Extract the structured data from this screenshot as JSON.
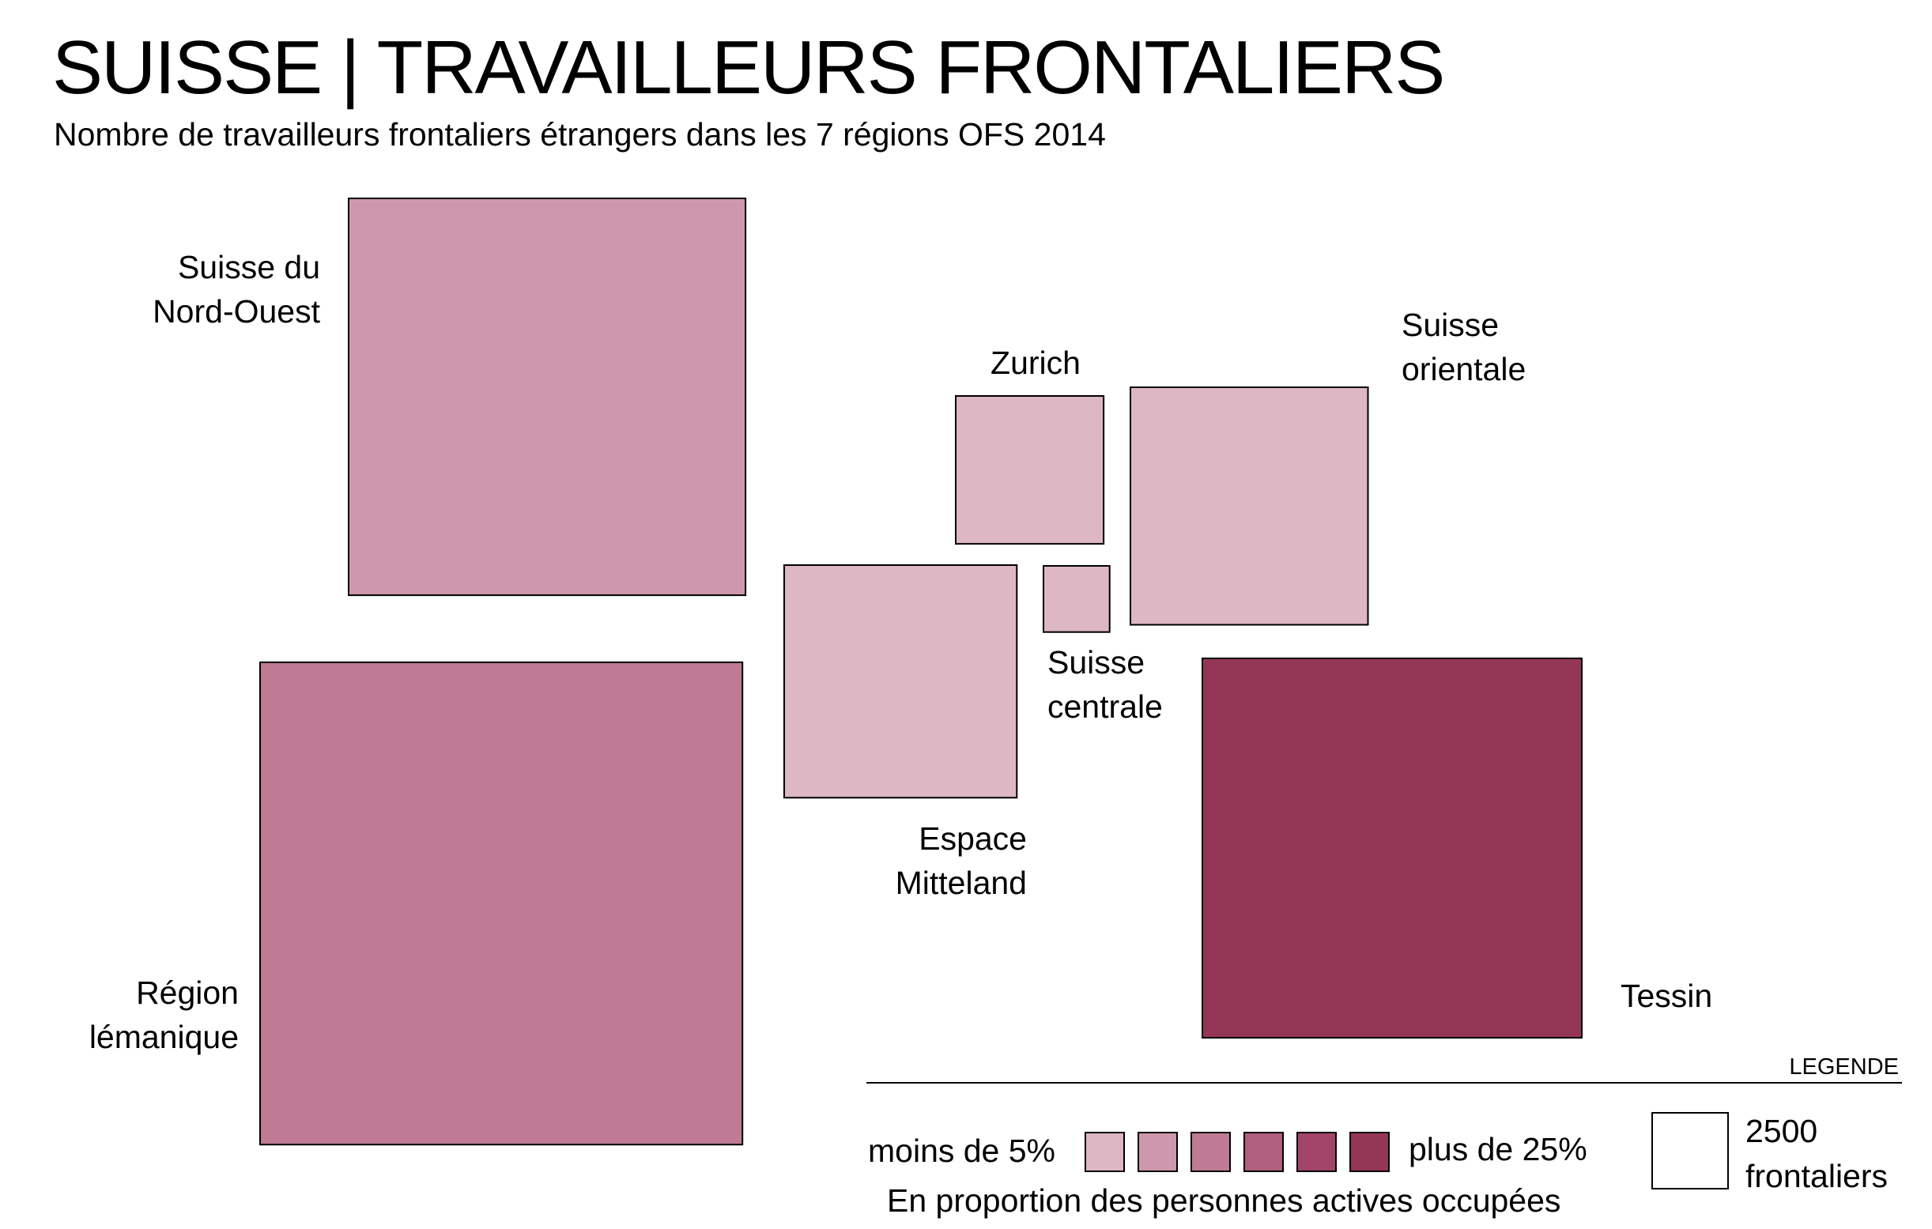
{
  "title": "SUISSE | TRAVAILLEURS FRONTALIERS",
  "subtitle": "Nombre de travailleurs frontaliers étrangers dans les 7 régions OFS 2014",
  "chart_data": {
    "type": "proportional-squares",
    "title": "SUISSE | TRAVAILLEURS FRONTALIERS",
    "subtitle": "Nombre de travailleurs frontaliers étrangers dans les 7 régions OFS 2014",
    "size_reference": {
      "value": 2500,
      "label_lines": [
        "2500",
        "frontaliers"
      ]
    },
    "color_scale": {
      "label_low": "moins de 5%",
      "label_high": "plus de 25%",
      "caption": "En proportion des personnes actives occupées",
      "classes": [
        "#ddb7c3",
        "#cd98ad",
        "#bf7b94",
        "#b15f7f",
        "#a2456b",
        "#943756"
      ]
    },
    "legend_title": "LEGENDE",
    "regions": [
      {
        "name_lines": [
          "Suisse du",
          "Nord-Ouest"
        ],
        "frontaliers": 68400,
        "color_class": 1
      },
      {
        "name_lines": [
          "Région",
          "lémanique"
        ],
        "frontaliers": 101000,
        "color_class": 2
      },
      {
        "name_lines": [
          "Espace",
          "Mitteland"
        ],
        "frontaliers": 23500,
        "color_class": 0
      },
      {
        "name_lines": [
          "Zurich"
        ],
        "frontaliers": 9500,
        "color_class": 0
      },
      {
        "name_lines": [
          "Suisse",
          "centrale"
        ],
        "frontaliers": 1900,
        "color_class": 0
      },
      {
        "name_lines": [
          "Suisse",
          "orientale"
        ],
        "frontaliers": 24500,
        "color_class": 0
      },
      {
        "name_lines": [
          "Tessin"
        ],
        "frontaliers": 62500,
        "color_class": 5
      }
    ]
  }
}
